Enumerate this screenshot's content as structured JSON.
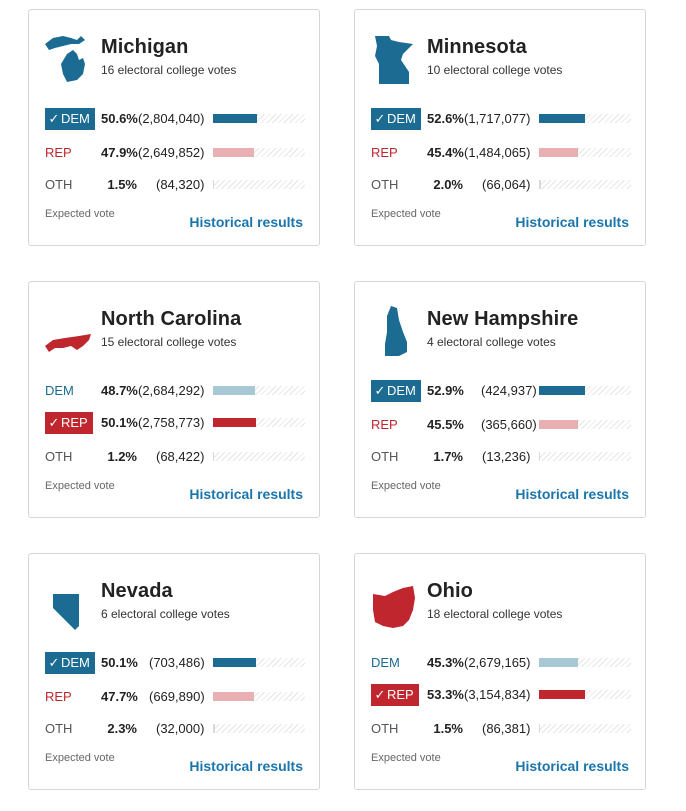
{
  "colors": {
    "dem_win": "#1b6b92",
    "dem_lose": "#a9c8d6",
    "rep_win": "#c0262e",
    "rep_lose": "#e9b0b3",
    "oth": "#d8d8d8"
  },
  "cards": [
    {
      "id": "michigan",
      "name": "Michigan",
      "ev": "16 electoral college votes",
      "shape_color": "#1b6b92",
      "icon": "michigan-map-icon",
      "rows": [
        {
          "party": "DEM",
          "pct": "50.6%",
          "votes": "(2,804,040)",
          "winner": true,
          "share": 0.506
        },
        {
          "party": "REP",
          "pct": "47.9%",
          "votes": "(2,649,852)",
          "winner": false,
          "share": 0.479
        },
        {
          "party": "OTH",
          "pct": "1.5%",
          "votes": "(84,320)",
          "winner": false,
          "share": 0.015
        }
      ],
      "expected": "Expected vote",
      "historical": "Historical results"
    },
    {
      "id": "minnesota",
      "name": "Minnesota",
      "ev": "10 electoral college votes",
      "shape_color": "#1b6b92",
      "icon": "minnesota-map-icon",
      "rows": [
        {
          "party": "DEM",
          "pct": "52.6%",
          "votes": "(1,717,077)",
          "winner": true,
          "share": 0.526
        },
        {
          "party": "REP",
          "pct": "45.4%",
          "votes": "(1,484,065)",
          "winner": false,
          "share": 0.454
        },
        {
          "party": "OTH",
          "pct": "2.0%",
          "votes": "(66,064)",
          "winner": false,
          "share": 0.02
        }
      ],
      "expected": "Expected vote",
      "historical": "Historical results"
    },
    {
      "id": "north-carolina",
      "name": "North Carolina",
      "ev": "15 electoral college votes",
      "shape_color": "#c0262e",
      "icon": "north-carolina-map-icon",
      "rows": [
        {
          "party": "DEM",
          "pct": "48.7%",
          "votes": "(2,684,292)",
          "winner": false,
          "share": 0.487
        },
        {
          "party": "REP",
          "pct": "50.1%",
          "votes": "(2,758,773)",
          "winner": true,
          "share": 0.501
        },
        {
          "party": "OTH",
          "pct": "1.2%",
          "votes": "(68,422)",
          "winner": false,
          "share": 0.012
        }
      ],
      "expected": "Expected vote",
      "historical": "Historical results"
    },
    {
      "id": "new-hampshire",
      "name": "New Hampshire",
      "ev": "4 electoral college votes",
      "shape_color": "#1b6b92",
      "icon": "new-hampshire-map-icon",
      "rows": [
        {
          "party": "DEM",
          "pct": "52.9%",
          "votes": "(424,937)",
          "winner": true,
          "share": 0.529
        },
        {
          "party": "REP",
          "pct": "45.5%",
          "votes": "(365,660)",
          "winner": false,
          "share": 0.455
        },
        {
          "party": "OTH",
          "pct": "1.7%",
          "votes": "(13,236)",
          "winner": false,
          "share": 0.017
        }
      ],
      "expected": "Expected vote",
      "historical": "Historical results"
    },
    {
      "id": "nevada",
      "name": "Nevada",
      "ev": "6 electoral college votes",
      "shape_color": "#1b6b92",
      "icon": "nevada-map-icon",
      "rows": [
        {
          "party": "DEM",
          "pct": "50.1%",
          "votes": "(703,486)",
          "winner": true,
          "share": 0.501
        },
        {
          "party": "REP",
          "pct": "47.7%",
          "votes": "(669,890)",
          "winner": false,
          "share": 0.477
        },
        {
          "party": "OTH",
          "pct": "2.3%",
          "votes": "(32,000)",
          "winner": false,
          "share": 0.023
        }
      ],
      "expected": "Expected vote",
      "historical": "Historical results"
    },
    {
      "id": "ohio",
      "name": "Ohio",
      "ev": "18 electoral college votes",
      "shape_color": "#c0262e",
      "icon": "ohio-map-icon",
      "rows": [
        {
          "party": "DEM",
          "pct": "45.3%",
          "votes": "(2,679,165)",
          "winner": false,
          "share": 0.453
        },
        {
          "party": "REP",
          "pct": "53.3%",
          "votes": "(3,154,834)",
          "winner": true,
          "share": 0.533
        },
        {
          "party": "OTH",
          "pct": "1.5%",
          "votes": "(86,381)",
          "winner": false,
          "share": 0.015
        }
      ],
      "expected": "Expected vote",
      "historical": "Historical results"
    }
  ]
}
